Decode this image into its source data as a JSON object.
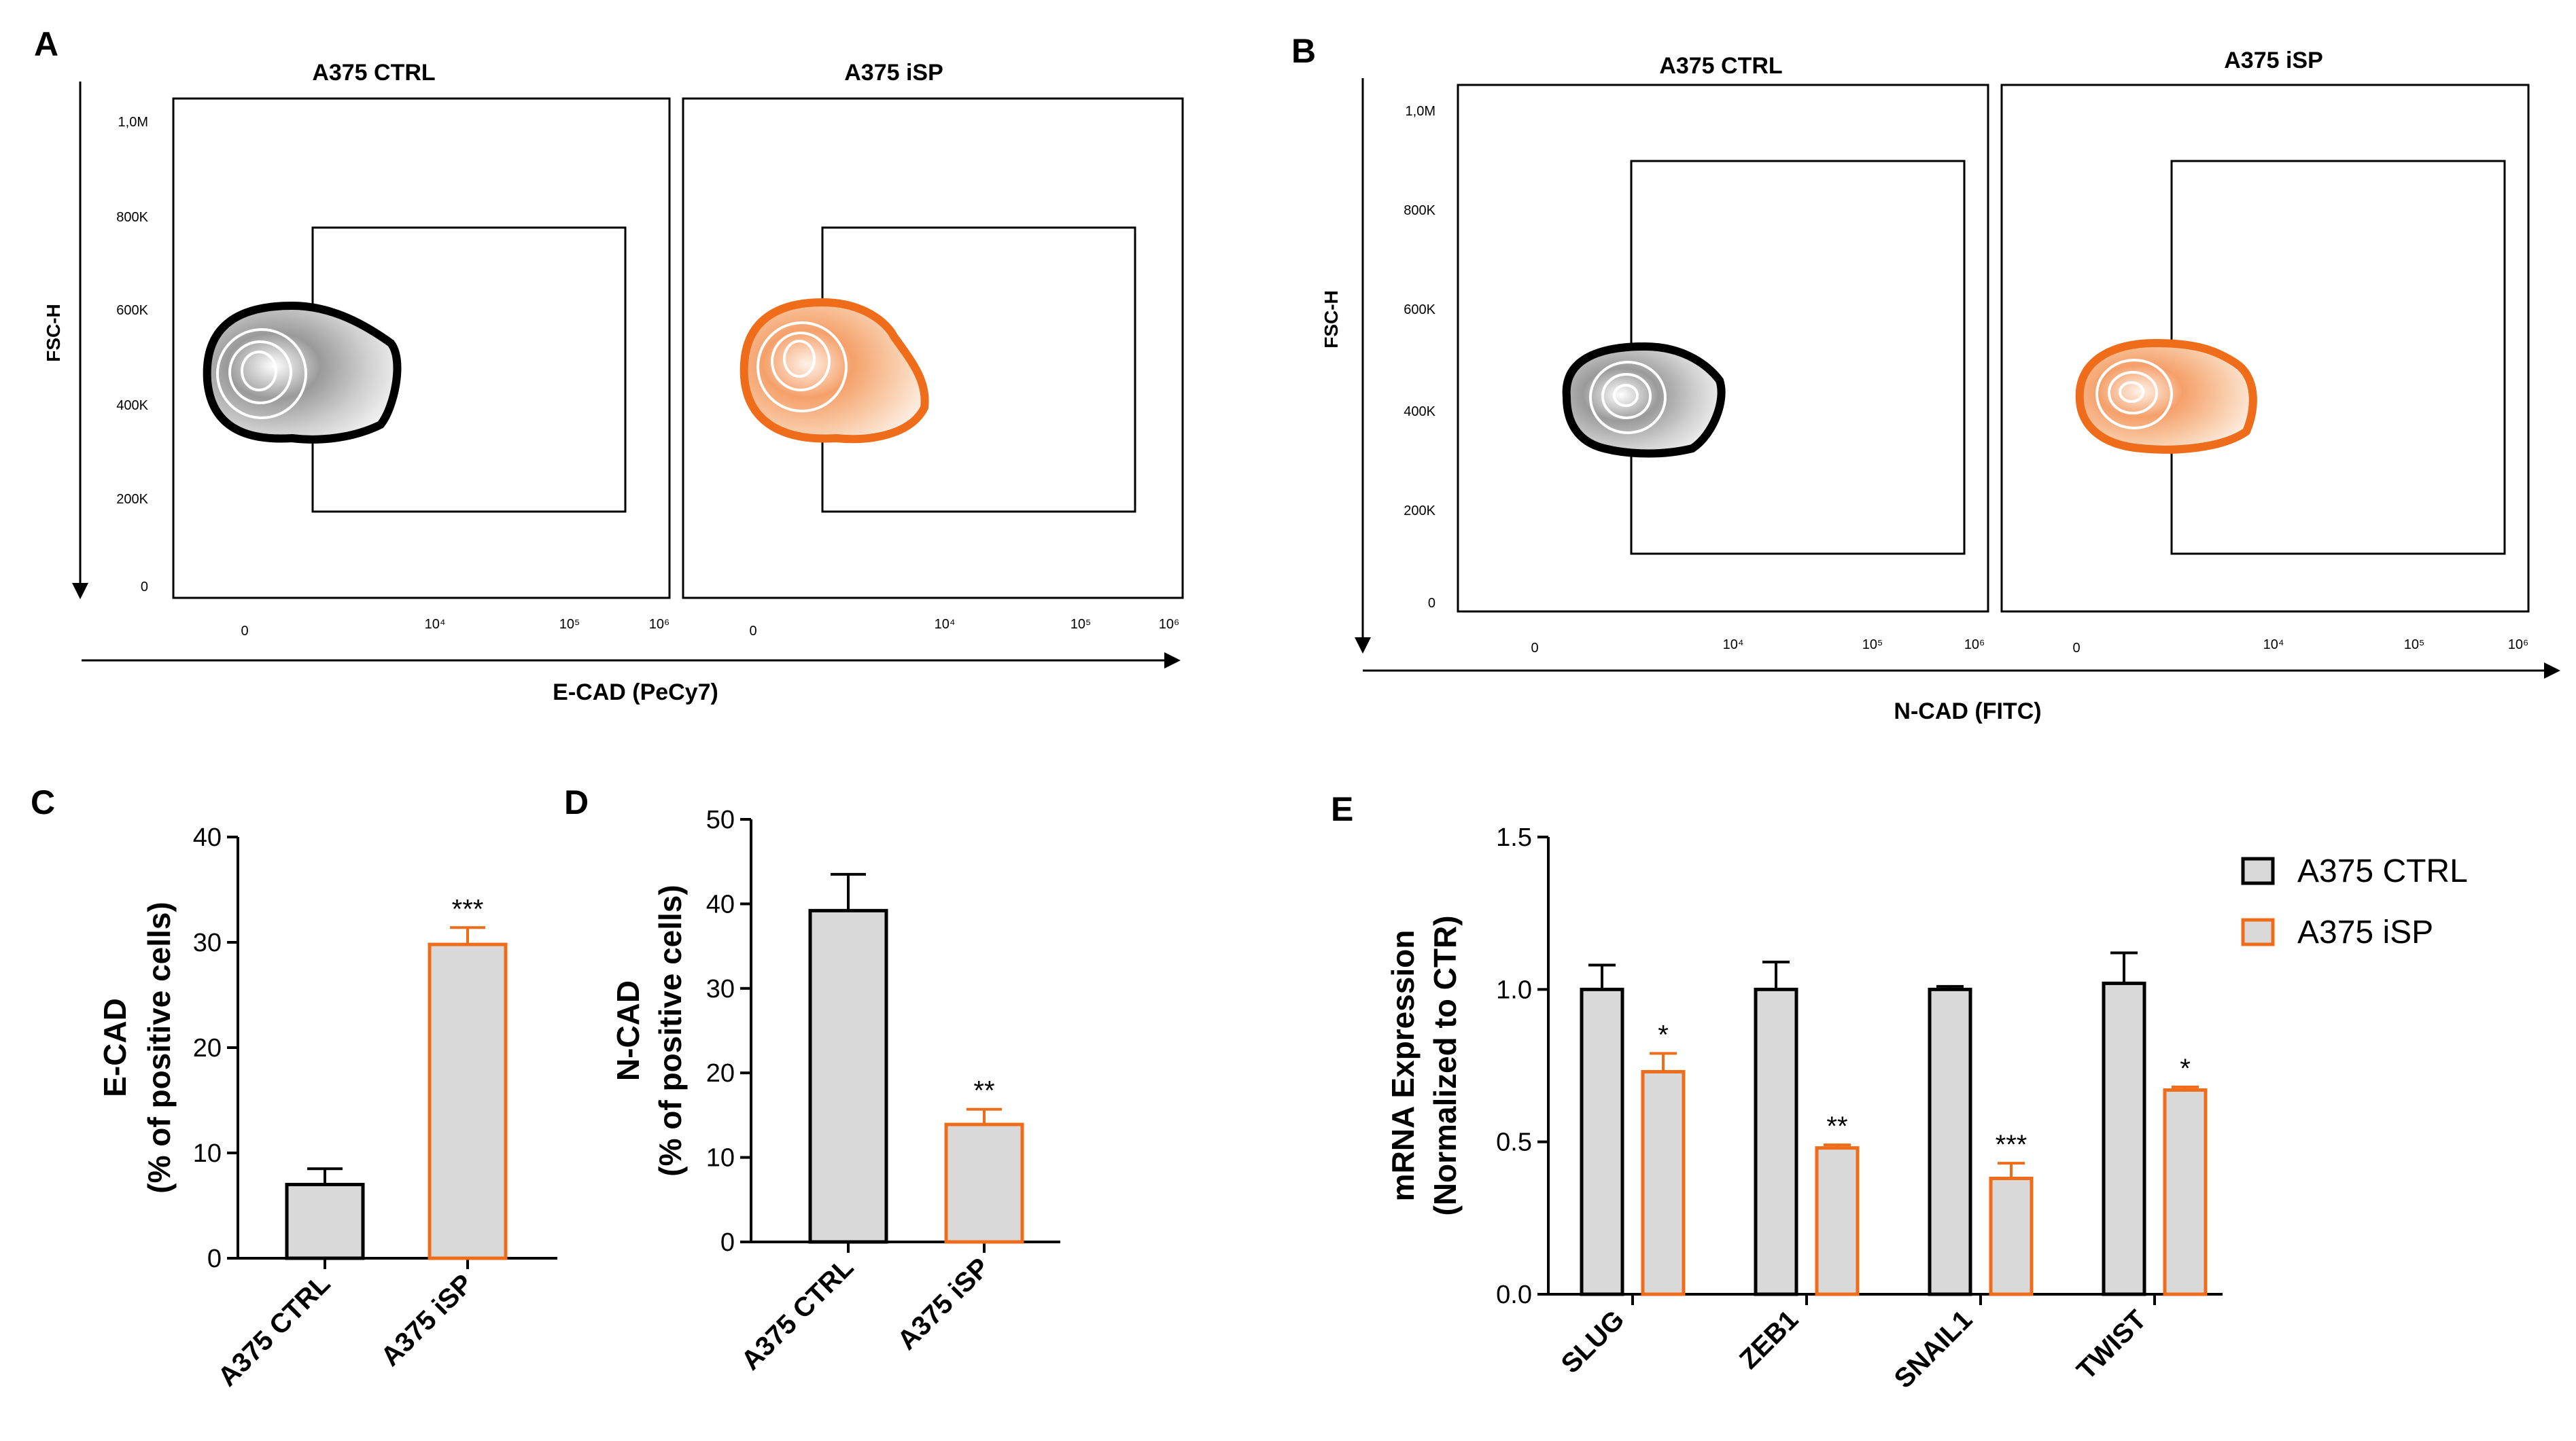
{
  "colors": {
    "ctrl_fill": "#d9d9d9",
    "ctrl_edge": "#000000",
    "isp_fill": "#d9d9d9",
    "isp_edge": "#ef6c1a",
    "isp_contour": "#ef6c1a",
    "ctrl_contour": "#111111"
  },
  "panels": {
    "A": {
      "letter": "A",
      "y_label": "FSC-H",
      "x_label": "E-CAD (PeCy7)",
      "left_title": "A375 CTRL",
      "right_title": "A375 iSP",
      "y_ticks": [
        "1,0M",
        "800K",
        "600K",
        "400K",
        "200K",
        "0"
      ],
      "x_ticks": [
        "0",
        "10⁴",
        "10⁵",
        "10⁶"
      ]
    },
    "B": {
      "letter": "B",
      "y_label": "FSC-H",
      "x_label": "N-CAD (FITC)",
      "left_title": "A375 CTRL",
      "right_title": "A375 iSP",
      "y_ticks": [
        "1,0M",
        "800K",
        "600K",
        "400K",
        "200K",
        "0"
      ],
      "x_ticks": [
        "0",
        "10⁴",
        "10⁵",
        "10⁶"
      ]
    },
    "C": {
      "letter": "C"
    },
    "D": {
      "letter": "D"
    },
    "E": {
      "letter": "E"
    }
  },
  "chart_data": [
    {
      "id": "C",
      "type": "bar",
      "categories": [
        "A375 CTRL",
        "A375 iSP"
      ],
      "values": [
        7.0,
        29.8
      ],
      "errors": [
        1.5,
        1.6
      ],
      "significance": [
        "",
        "***"
      ],
      "ylabel_line1": "E-CAD",
      "ylabel_line2": "(% of positive cells)",
      "ylim": [
        0,
        40
      ],
      "yticks": [
        0,
        10,
        20,
        30,
        40
      ]
    },
    {
      "id": "D",
      "type": "bar",
      "categories": [
        "A375 CTRL",
        "A375 iSP"
      ],
      "values": [
        39.2,
        13.9
      ],
      "errors": [
        4.3,
        1.8
      ],
      "significance": [
        "",
        "**"
      ],
      "ylabel_line1": "N-CAD",
      "ylabel_line2": "(% of positive cells)",
      "ylim": [
        0,
        50
      ],
      "yticks": [
        0,
        10,
        20,
        30,
        40,
        50
      ]
    },
    {
      "id": "E",
      "type": "bar",
      "categories": [
        "SLUG",
        "ZEB1",
        "SNAIL1",
        "TWIST"
      ],
      "ylabel_line1": "mRNA Expression",
      "ylabel_line2": "(Normalized to CTR)",
      "ylim": [
        0,
        1.5
      ],
      "yticks": [
        "0.0",
        "0.5",
        "1.0",
        "1.5"
      ],
      "legend_position": "top-right",
      "series": [
        {
          "name": "A375 CTRL",
          "values": [
            1.0,
            1.0,
            1.0,
            1.02
          ],
          "errors": [
            0.08,
            0.09,
            0.01,
            0.1
          ],
          "significance": [
            "",
            "",
            "",
            ""
          ]
        },
        {
          "name": "A375 iSP",
          "values": [
            0.73,
            0.48,
            0.38,
            0.67
          ],
          "errors": [
            0.06,
            0.01,
            0.05,
            0.01
          ],
          "significance": [
            "*",
            "**",
            "***",
            "*"
          ]
        }
      ]
    }
  ]
}
